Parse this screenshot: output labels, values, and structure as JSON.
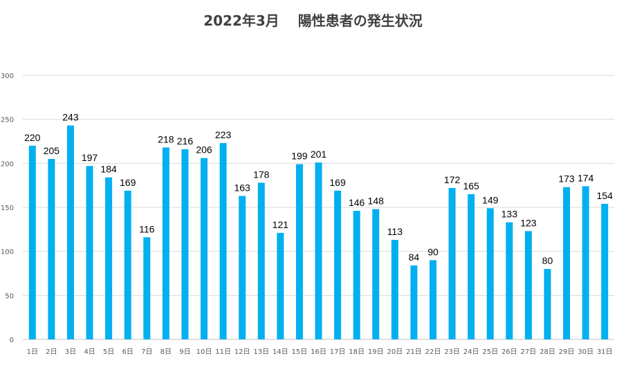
{
  "chart_data": {
    "type": "bar",
    "title": "2022年3月　 陽性患者の発生状況",
    "xlabel": "",
    "ylabel": "",
    "ylim": [
      0,
      300
    ],
    "yticks": [
      0,
      50,
      100,
      150,
      200,
      250,
      300
    ],
    "grid": true,
    "legend": "none",
    "bar_color": "#00b0f0",
    "categories": [
      "1日",
      "2日",
      "3日",
      "4日",
      "5日",
      "6日",
      "7日",
      "8日",
      "9日",
      "10日",
      "11日",
      "12日",
      "13日",
      "14日",
      "15日",
      "16日",
      "17日",
      "18日",
      "19日",
      "20日",
      "21日",
      "22日",
      "23日",
      "24日",
      "25日",
      "26日",
      "27日",
      "28日",
      "29日",
      "30日",
      "31日"
    ],
    "values": [
      220,
      205,
      243,
      197,
      184,
      169,
      116,
      218,
      216,
      206,
      223,
      163,
      178,
      121,
      199,
      201,
      169,
      146,
      148,
      113,
      84,
      90,
      172,
      165,
      149,
      133,
      123,
      80,
      173,
      174,
      154
    ]
  }
}
